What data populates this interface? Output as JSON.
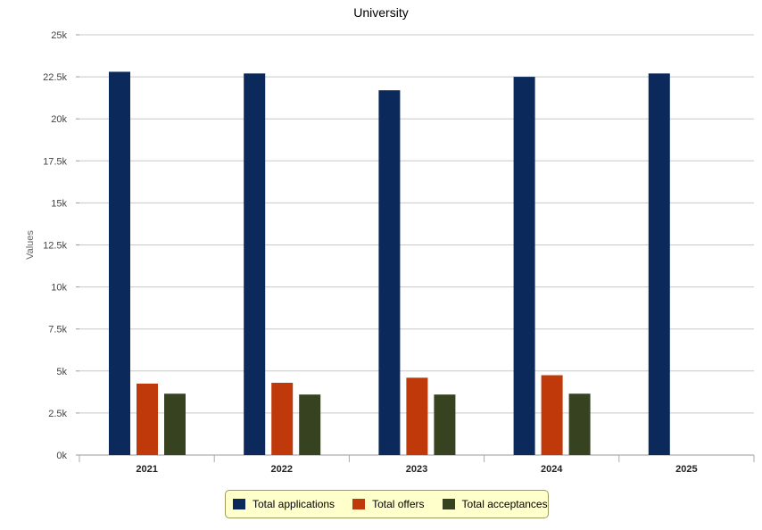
{
  "chart_data": {
    "type": "bar",
    "title": "University",
    "ylabel": "Values",
    "xlabel": "",
    "categories": [
      "2021",
      "2022",
      "2023",
      "2024",
      "2025"
    ],
    "series": [
      {
        "name": "Total applications",
        "color": "#0b2a5b",
        "values": [
          22800,
          22700,
          21700,
          22500,
          22700
        ]
      },
      {
        "name": "Total offers",
        "color": "#c0390b",
        "values": [
          4250,
          4300,
          4600,
          4750,
          null
        ]
      },
      {
        "name": "Total acceptances",
        "color": "#374320",
        "values": [
          3650,
          3600,
          3600,
          3650,
          null
        ]
      }
    ],
    "ylim": [
      0,
      25000
    ],
    "yticks": [
      {
        "value": 0,
        "label": "0k"
      },
      {
        "value": 2500,
        "label": "2.5k"
      },
      {
        "value": 5000,
        "label": "5k"
      },
      {
        "value": 7500,
        "label": "7.5k"
      },
      {
        "value": 10000,
        "label": "10k"
      },
      {
        "value": 12500,
        "label": "12.5k"
      },
      {
        "value": 15000,
        "label": "15k"
      },
      {
        "value": 17500,
        "label": "17.5k"
      },
      {
        "value": 20000,
        "label": "20k"
      },
      {
        "value": 22500,
        "label": "22.5k"
      },
      {
        "value": 25000,
        "label": "25k"
      }
    ],
    "grid": true,
    "legend_position": "bottom-center"
  }
}
